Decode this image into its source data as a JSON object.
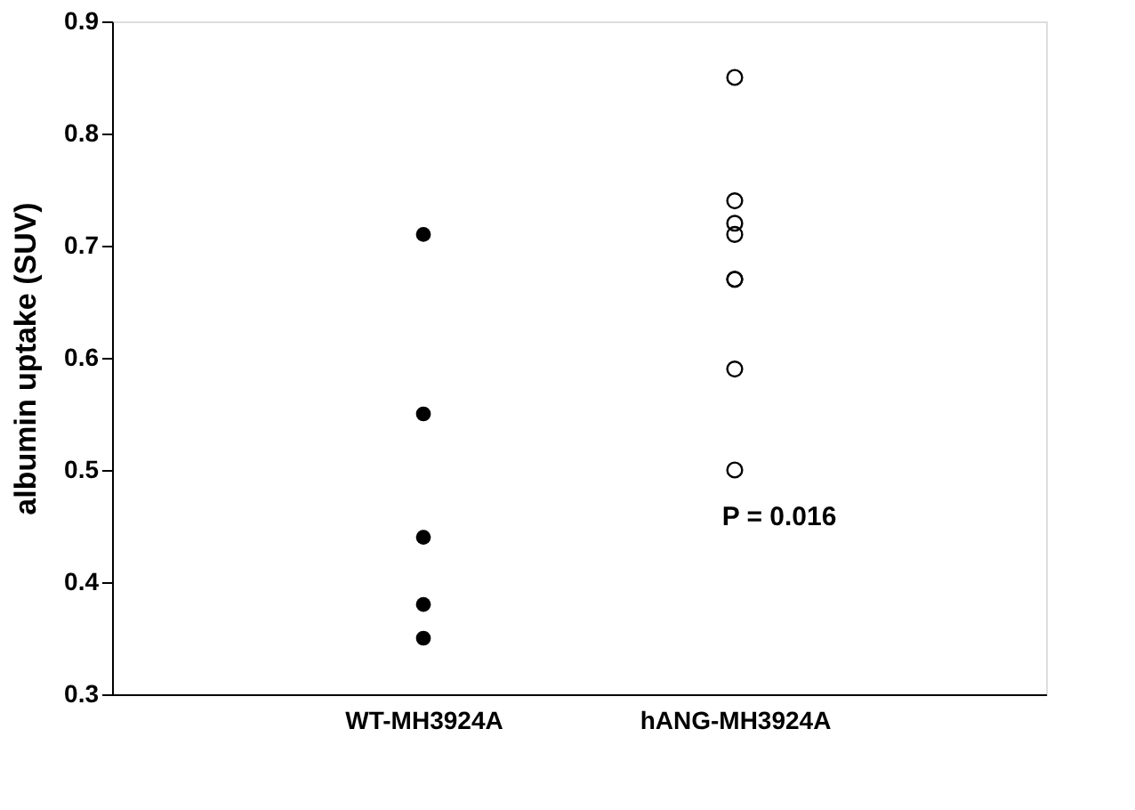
{
  "chart_data": {
    "type": "scatter",
    "ylabel": "albumin uptake (SUV)",
    "categories": [
      "WT-MH3924A",
      "hANG-MH3924A"
    ],
    "series": [
      {
        "color": "#000000",
        "x": [
          "WT-MH3924A",
          "WT-MH3924A",
          "WT-MH3924A",
          "WT-MH3924A",
          "WT-MH3924A"
        ],
        "values": [
          0.71,
          0.55,
          0.44,
          0.38,
          0.35
        ]
      },
      {
        "color": "#000000",
        "x": [
          "hANG-MH3924A",
          "hANG-MH3924A",
          "hANG-MH3924A",
          "hANG-MH3924A",
          "hANG-MH3924A",
          "hANG-MH3924A",
          "hANG-MH3924A",
          "hANG-MH3924A"
        ],
        "values": [
          0.85,
          0.74,
          0.72,
          0.71,
          0.67,
          0.67,
          0.59,
          0.5
        ]
      }
    ],
    "ylim": [
      0.3,
      0.9
    ],
    "yticks": [
      0.3,
      0.4,
      0.5,
      0.6,
      0.7,
      0.8,
      0.9
    ],
    "grid": false,
    "legend": false,
    "marker": "circle",
    "annotations": [
      "P = 0.016"
    ]
  }
}
